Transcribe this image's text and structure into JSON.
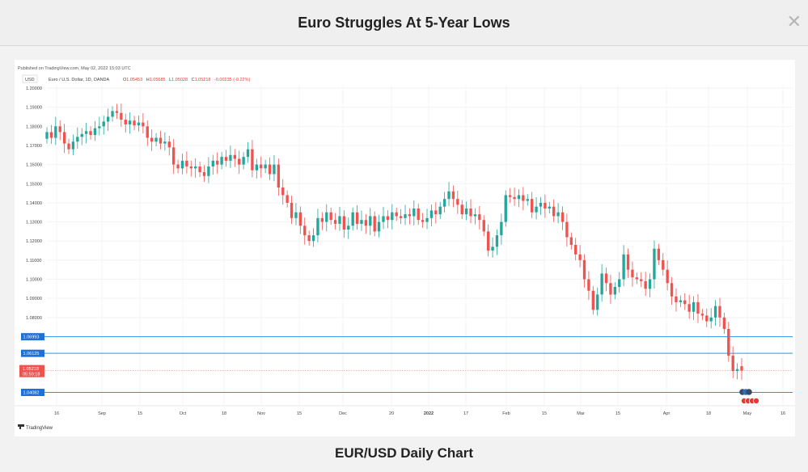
{
  "header": {
    "title": "Euro Struggles At 5-Year Lows"
  },
  "caption": "EUR/USD Daily Chart",
  "chart_data": {
    "type": "candlestick",
    "published": "Published on TradingView.com, May 02, 2022 15:03 UTC",
    "currency": "USD",
    "symbol_info": "Euro / U.S. Dollar, 1D, OANDA",
    "ohlc_summary": [
      {
        "label": "O",
        "value": "1.05453"
      },
      {
        "label": "H",
        "value": "1.05685"
      },
      {
        "label": "L",
        "value": "1.05028"
      },
      {
        "label": "C",
        "value": "1.05218"
      },
      {
        "label": "",
        "value": "-0.00235 (-0.22%)"
      }
    ],
    "ylim": [
      1.028,
      1.2
    ],
    "y_ticks": [
      "1.20000",
      "1.19000",
      "1.18000",
      "1.17000",
      "1.16000",
      "1.15000",
      "1.14000",
      "1.13000",
      "1.12000",
      "1.11000",
      "1.10000",
      "1.09000",
      "1.08000"
    ],
    "x_ticks": [
      "16",
      "Sep",
      "15",
      "Oct",
      "18",
      "Nov",
      "15",
      "Dec",
      "20",
      "2022",
      "17",
      "Feb",
      "15",
      "Mar",
      "15",
      "Apr",
      "18",
      "May",
      "16"
    ],
    "horizontal_levels": [
      {
        "value": 1.06993,
        "label": "1.06993"
      },
      {
        "value": 1.06125,
        "label": "1.06125"
      },
      {
        "value": 1.04082,
        "label": "1.04082"
      }
    ],
    "last_price": {
      "value": 1.05218,
      "label": "1.05218",
      "countdown": "05:59:18"
    },
    "colors": {
      "up": "#26a69a",
      "down": "#ef5350",
      "level": "#2196f3",
      "tag": "#1e70d6"
    },
    "candles": [
      [
        1.1735,
        1.177
      ],
      [
        1.177,
        1.174
      ],
      [
        1.174,
        1.18
      ],
      [
        1.18,
        1.177
      ],
      [
        1.177,
        1.171
      ],
      [
        1.171,
        1.168
      ],
      [
        1.168,
        1.172
      ],
      [
        1.172,
        1.1745
      ],
      [
        1.1745,
        1.176
      ],
      [
        1.176,
        1.1775
      ],
      [
        1.1775,
        1.1755
      ],
      [
        1.1755,
        1.179
      ],
      [
        1.179,
        1.18
      ],
      [
        1.18,
        1.1825
      ],
      [
        1.1825,
        1.185
      ],
      [
        1.185,
        1.188
      ],
      [
        1.188,
        1.187
      ],
      [
        1.187,
        1.1835
      ],
      [
        1.1835,
        1.181
      ],
      [
        1.181,
        1.183
      ],
      [
        1.183,
        1.1805
      ],
      [
        1.1805,
        1.182
      ],
      [
        1.182,
        1.18
      ],
      [
        1.18,
        1.174
      ],
      [
        1.174,
        1.172
      ],
      [
        1.172,
        1.174
      ],
      [
        1.174,
        1.171
      ],
      [
        1.171,
        1.172
      ],
      [
        1.172,
        1.169
      ],
      [
        1.169,
        1.16
      ],
      [
        1.16,
        1.158
      ],
      [
        1.158,
        1.162
      ],
      [
        1.162,
        1.159
      ],
      [
        1.159,
        1.158
      ],
      [
        1.158,
        1.159
      ],
      [
        1.159,
        1.156
      ],
      [
        1.156,
        1.154
      ],
      [
        1.154,
        1.159
      ],
      [
        1.159,
        1.162
      ],
      [
        1.162,
        1.16
      ],
      [
        1.16,
        1.164
      ],
      [
        1.164,
        1.162
      ],
      [
        1.162,
        1.165
      ],
      [
        1.165,
        1.163
      ],
      [
        1.163,
        1.16
      ],
      [
        1.16,
        1.164
      ],
      [
        1.164,
        1.168
      ],
      [
        1.168,
        1.157
      ],
      [
        1.157,
        1.16
      ],
      [
        1.16,
        1.158
      ],
      [
        1.158,
        1.16
      ],
      [
        1.16,
        1.155
      ],
      [
        1.155,
        1.16
      ],
      [
        1.16,
        1.148
      ],
      [
        1.148,
        1.144
      ],
      [
        1.144,
        1.14
      ],
      [
        1.14,
        1.132
      ],
      [
        1.132,
        1.135
      ],
      [
        1.135,
        1.128
      ],
      [
        1.128,
        1.123
      ],
      [
        1.123,
        1.12
      ],
      [
        1.12,
        1.123
      ],
      [
        1.123,
        1.132
      ],
      [
        1.132,
        1.13
      ],
      [
        1.13,
        1.135
      ],
      [
        1.135,
        1.131
      ],
      [
        1.131,
        1.129
      ],
      [
        1.129,
        1.133
      ],
      [
        1.133,
        1.126
      ],
      [
        1.126,
        1.128
      ],
      [
        1.128,
        1.135
      ],
      [
        1.135,
        1.129
      ],
      [
        1.129,
        1.131
      ],
      [
        1.131,
        1.128
      ],
      [
        1.128,
        1.133
      ],
      [
        1.133,
        1.125
      ],
      [
        1.125,
        1.13
      ],
      [
        1.13,
        1.133
      ],
      [
        1.133,
        1.131
      ],
      [
        1.131,
        1.135
      ],
      [
        1.135,
        1.133
      ],
      [
        1.133,
        1.132
      ],
      [
        1.132,
        1.134
      ],
      [
        1.134,
        1.133
      ],
      [
        1.133,
        1.137
      ],
      [
        1.137,
        1.131
      ],
      [
        1.131,
        1.13
      ],
      [
        1.13,
        1.132
      ],
      [
        1.132,
        1.136
      ],
      [
        1.136,
        1.134
      ],
      [
        1.134,
        1.138
      ],
      [
        1.138,
        1.142
      ],
      [
        1.142,
        1.146
      ],
      [
        1.146,
        1.142
      ],
      [
        1.142,
        1.139
      ],
      [
        1.139,
        1.134
      ],
      [
        1.134,
        1.137
      ],
      [
        1.137,
        1.133
      ],
      [
        1.133,
        1.134
      ],
      [
        1.134,
        1.131
      ],
      [
        1.131,
        1.125
      ],
      [
        1.125,
        1.115
      ],
      [
        1.115,
        1.117
      ],
      [
        1.117,
        1.123
      ],
      [
        1.123,
        1.13
      ],
      [
        1.13,
        1.144
      ],
      [
        1.144,
        1.143
      ],
      [
        1.143,
        1.142
      ],
      [
        1.142,
        1.144
      ],
      [
        1.144,
        1.141
      ],
      [
        1.141,
        1.142
      ],
      [
        1.142,
        1.135
      ],
      [
        1.135,
        1.138
      ],
      [
        1.138,
        1.14
      ],
      [
        1.14,
        1.137
      ],
      [
        1.137,
        1.138
      ],
      [
        1.138,
        1.133
      ],
      [
        1.133,
        1.135
      ],
      [
        1.135,
        1.13
      ],
      [
        1.13,
        1.122
      ],
      [
        1.122,
        1.118
      ],
      [
        1.118,
        1.113
      ],
      [
        1.113,
        1.11
      ],
      [
        1.11,
        1.1
      ],
      [
        1.1,
        1.094
      ],
      [
        1.094,
        1.084
      ],
      [
        1.084,
        1.092
      ],
      [
        1.092,
        1.103
      ],
      [
        1.103,
        1.098
      ],
      [
        1.098,
        1.092
      ],
      [
        1.092,
        1.096
      ],
      [
        1.096,
        1.1
      ],
      [
        1.1,
        1.113
      ],
      [
        1.113,
        1.105
      ],
      [
        1.105,
        1.101
      ],
      [
        1.101,
        1.1
      ],
      [
        1.1,
        1.099
      ],
      [
        1.099,
        1.095
      ],
      [
        1.095,
        1.1
      ],
      [
        1.1,
        1.116
      ],
      [
        1.116,
        1.11
      ],
      [
        1.11,
        1.105
      ],
      [
        1.105,
        1.098
      ],
      [
        1.098,
        1.091
      ],
      [
        1.091,
        1.088
      ],
      [
        1.088,
        1.089
      ],
      [
        1.089,
        1.087
      ],
      [
        1.087,
        1.083
      ],
      [
        1.083,
        1.088
      ],
      [
        1.088,
        1.082
      ],
      [
        1.082,
        1.081
      ],
      [
        1.081,
        1.078
      ],
      [
        1.078,
        1.08
      ],
      [
        1.08,
        1.086
      ],
      [
        1.086,
        1.08
      ],
      [
        1.08,
        1.074
      ],
      [
        1.074,
        1.06
      ],
      [
        1.06,
        1.052
      ],
      [
        1.052,
        1.053
      ],
      [
        1.0545,
        1.0522
      ]
    ]
  }
}
